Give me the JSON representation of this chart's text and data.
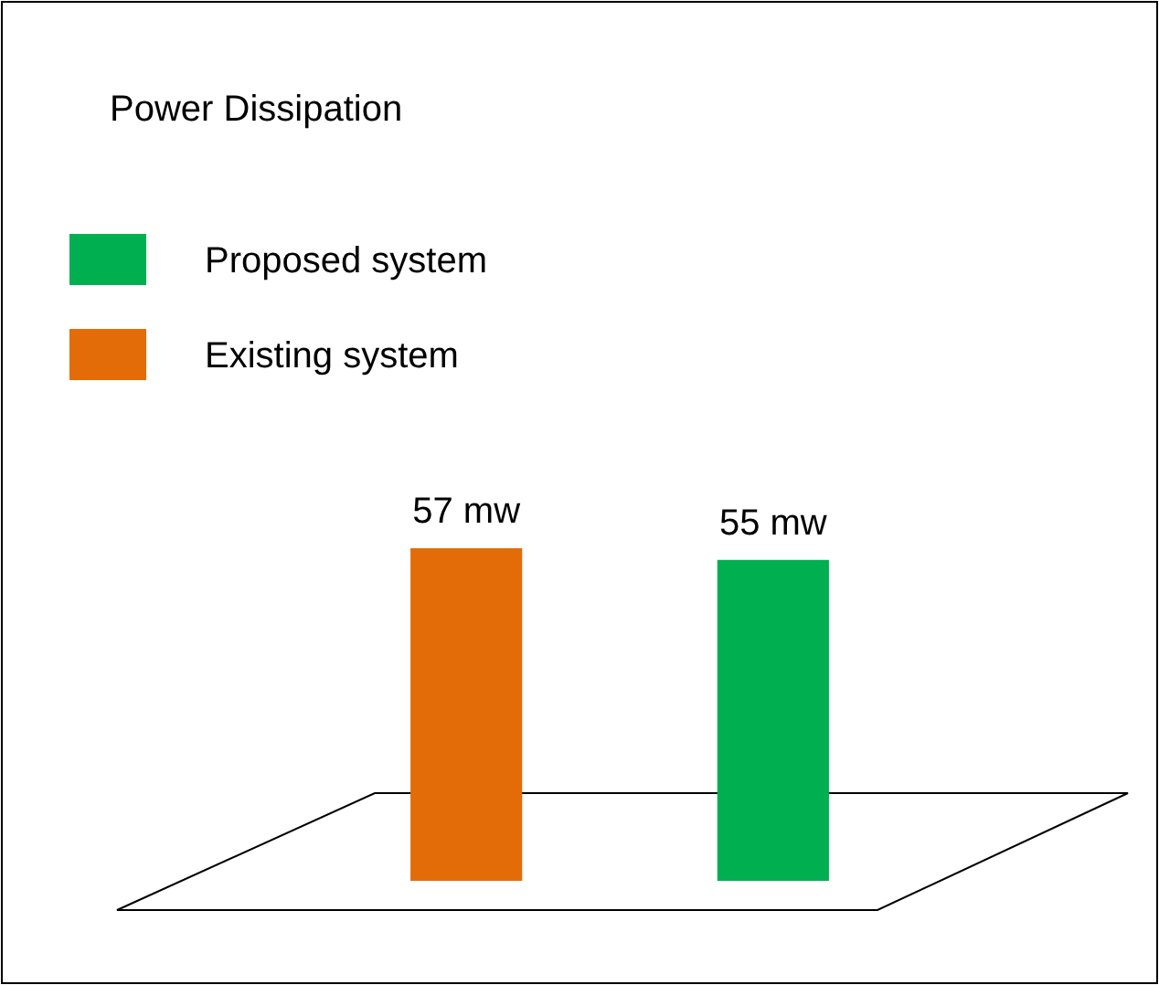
{
  "chart_data": {
    "type": "bar",
    "title": "Power Dissipation",
    "categories": [
      null,
      null
    ],
    "stacked": true,
    "series": [
      {
        "name": "Existing system",
        "color": "#e36c09",
        "values": [
          57,
          0
        ],
        "value_labels": [
          "57 mw",
          null
        ]
      },
      {
        "name": "Proposed system",
        "color": "#00b050",
        "values": [
          0,
          55
        ],
        "value_labels": [
          null,
          "55 mw"
        ]
      }
    ],
    "legend": "top left"
  }
}
